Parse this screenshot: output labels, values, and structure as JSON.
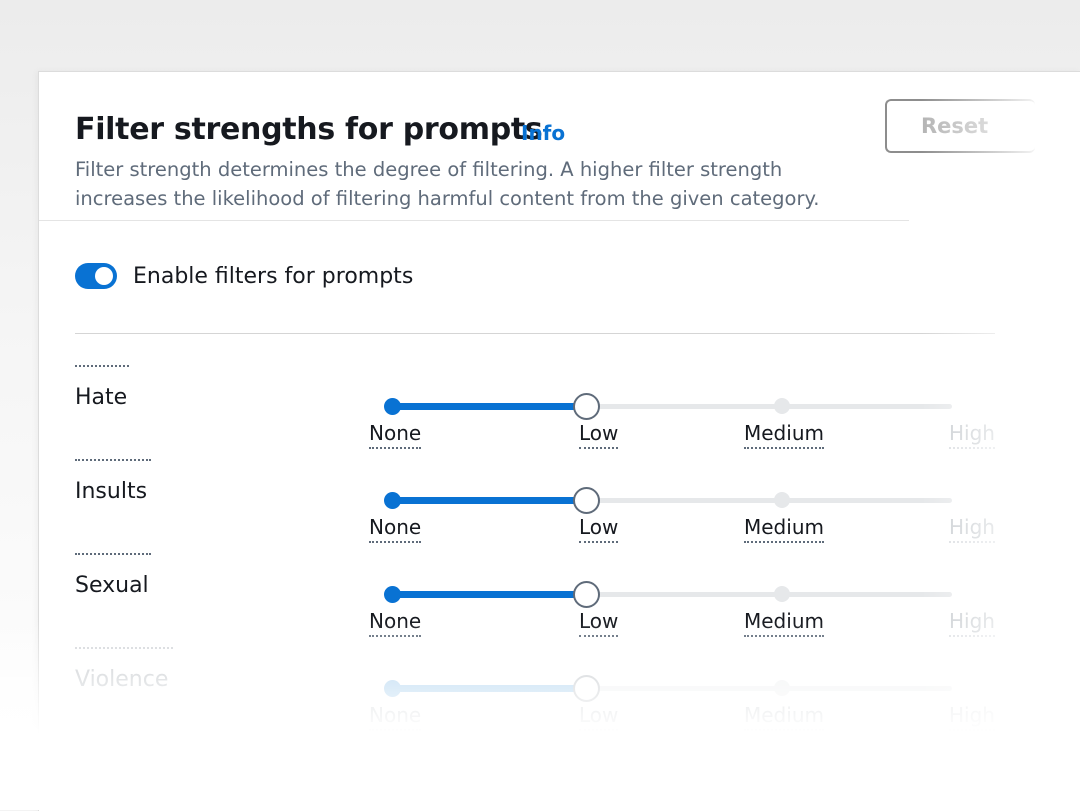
{
  "header": {
    "title": "Filter strengths for prompts",
    "info_link": "Info",
    "description": "Filter strength determines the degree of filtering.  A higher filter strength increases the likelihood of filtering harmful content from the given category.",
    "reset_label": "Reset"
  },
  "toggle": {
    "label": "Enable filters for prompts",
    "enabled": true
  },
  "levels": [
    "None",
    "Low",
    "Medium",
    "High"
  ],
  "categories": [
    {
      "label": "Hate",
      "selected_level": "Low"
    },
    {
      "label": "Insults",
      "selected_level": "Low"
    },
    {
      "label": "Sexual",
      "selected_level": "Low"
    },
    {
      "label": "Violence",
      "selected_level": "Low"
    }
  ],
  "colors": {
    "accent": "#0972d3",
    "text": "#16191f",
    "secondary_text": "#5f6b7a"
  }
}
